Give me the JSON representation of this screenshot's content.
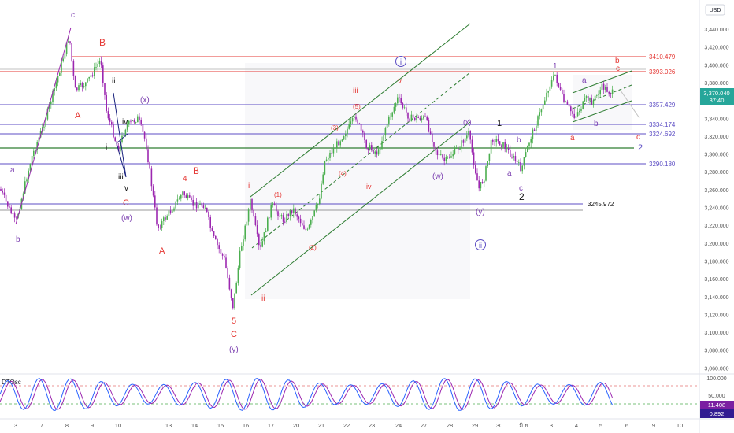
{
  "currency": "USD",
  "price_axis_ticks": [
    "3,440.000",
    "3,420.000",
    "3,400.000",
    "3,380.000",
    "3,360.000",
    "3,340.000",
    "3,320.000",
    "3,300.000",
    "3,280.000",
    "3,260.000",
    "3,240.000",
    "3,220.000",
    "3,200.000",
    "3,180.000",
    "3,160.000",
    "3,140.000",
    "3,120.000",
    "3,100.000",
    "3,080.000",
    "3,060.000"
  ],
  "current_price": {
    "value": "3,370.040",
    "countdown": "37:40",
    "color": "#26a69a"
  },
  "level_labels": [
    "3410.479",
    "3393.026",
    "3357.429",
    "3334.174",
    "3324.692",
    "3290.180",
    "3245.972"
  ],
  "date_ticks": [
    "3",
    "7",
    "8",
    "9",
    "10",
    "13",
    "14",
    "15",
    "16",
    "17",
    "20",
    "21",
    "22",
    "23",
    "24",
    "27",
    "28",
    "29",
    "30",
    "มิ.ย.",
    "3",
    "4",
    "5",
    "6",
    "9",
    "10"
  ],
  "oscillator": {
    "name": "DTOsc",
    "axis_ticks": [
      "100.000",
      "50.000"
    ],
    "values": [
      "11.408",
      "0.892"
    ],
    "fast_color": "#2962ff",
    "slow_color": "#9c27b0"
  },
  "wave_labels": {
    "circled": [
      "i",
      "ii"
    ],
    "purple": [
      "c",
      "b",
      "a",
      "(x)",
      "(w)",
      "(y)",
      "(w)",
      "(y)",
      "(x)",
      "2",
      "b",
      "c"
    ],
    "red": [
      "B",
      "A",
      "C",
      "B",
      "4",
      "A",
      "5",
      "C",
      "iii",
      "v",
      "(3)",
      "(5)",
      "iv",
      "ii",
      "(1)",
      "(2)",
      "(4)",
      "i",
      "a",
      "b",
      "c"
    ],
    "black": [
      "ii",
      "iv",
      "i",
      "iii",
      "v",
      "1",
      "2",
      "1"
    ]
  },
  "colors": {
    "bull": "#4caf50",
    "bear": "#9c27b0",
    "level_purple": "#5c4dc4",
    "level_red": "#e53935",
    "channel": "#2e7d32"
  }
}
